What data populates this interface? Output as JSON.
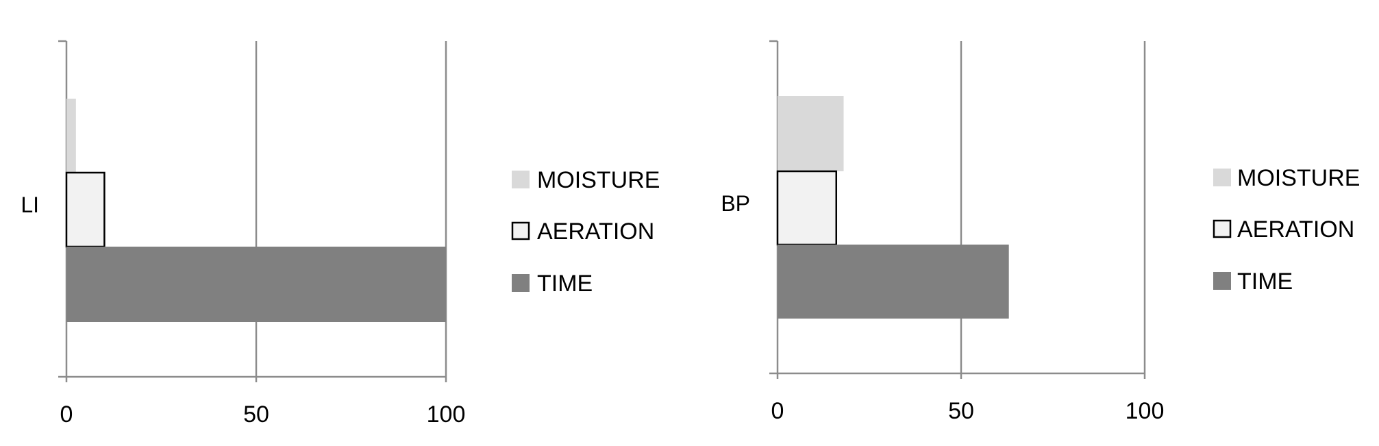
{
  "chart_data": [
    {
      "type": "bar",
      "orientation": "horizontal",
      "category": "LI",
      "xlim": [
        0,
        100
      ],
      "x_ticks": [
        "0",
        "50",
        "100"
      ],
      "grid": true,
      "legend_position": "right",
      "series": [
        {
          "name": "MOISTURE",
          "value": 2.5,
          "color": "#d9d9d9"
        },
        {
          "name": "AERATION",
          "value": 10,
          "color": "#f2f2f2"
        },
        {
          "name": "TIME",
          "value": 100,
          "color": "#808080"
        }
      ]
    },
    {
      "type": "bar",
      "orientation": "horizontal",
      "category": "BP",
      "xlim": [
        0,
        100
      ],
      "x_ticks": [
        "0",
        "50",
        "100"
      ],
      "grid": true,
      "legend_position": "right",
      "series": [
        {
          "name": "MOISTURE",
          "value": 18,
          "color": "#d9d9d9"
        },
        {
          "name": "AERATION",
          "value": 16,
          "color": "#f2f2f2"
        },
        {
          "name": "TIME",
          "value": 63,
          "color": "#808080"
        }
      ]
    }
  ]
}
